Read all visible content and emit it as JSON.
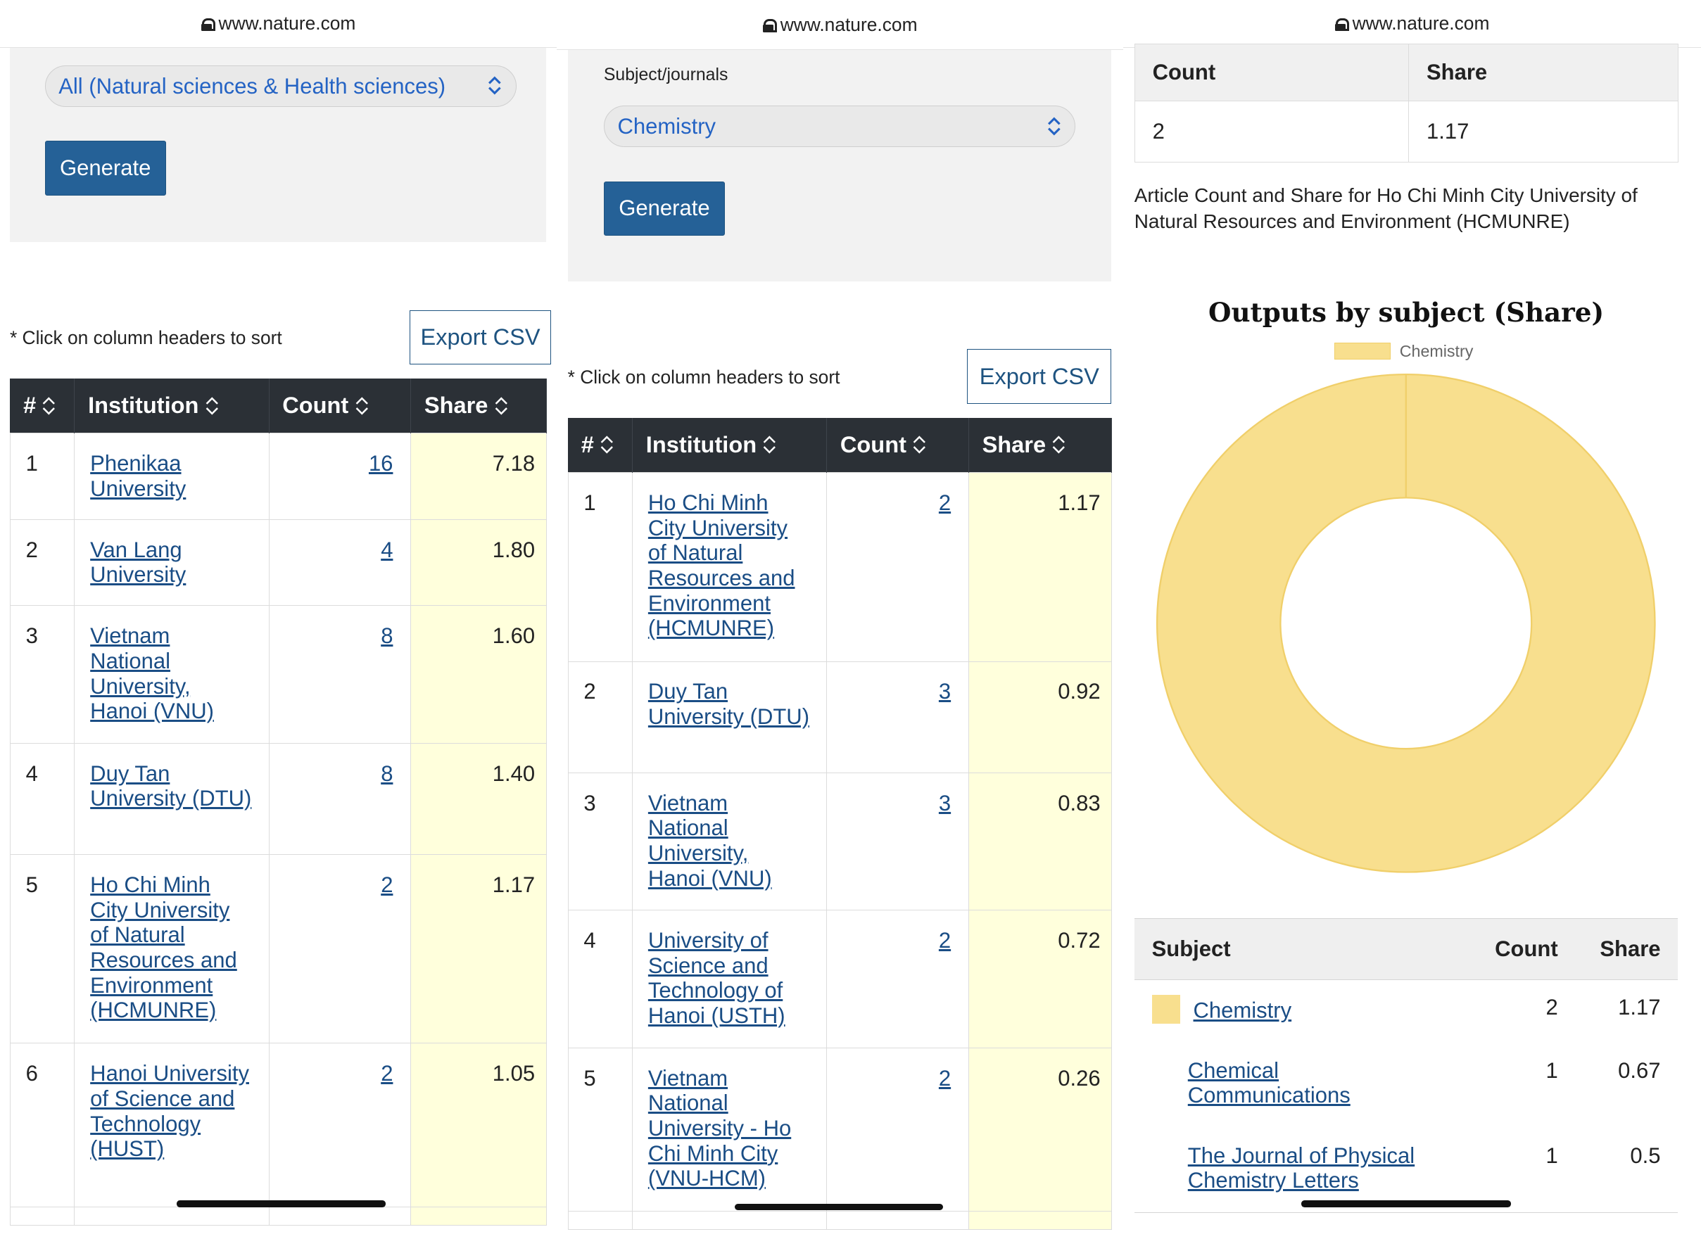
{
  "url": "www.nature.com",
  "panel1": {
    "select_value": "All (Natural sciences & Health sciences)",
    "generate_label": "Generate",
    "hint": "* Click on column headers to sort",
    "export_label": "Export CSV",
    "headers": {
      "rank": "#",
      "institution": "Institution",
      "count": "Count",
      "share": "Share"
    },
    "rows": [
      {
        "rank": "1",
        "name": "Phenikaa University",
        "count": "16",
        "share": "7.18"
      },
      {
        "rank": "2",
        "name": "Van Lang University",
        "count": "4",
        "share": "1.80"
      },
      {
        "rank": "3",
        "name": "Vietnam National University, Hanoi (VNU)",
        "count": "8",
        "share": "1.60"
      },
      {
        "rank": "4",
        "name": "Duy Tan University (DTU)",
        "count": "8",
        "share": "1.40"
      },
      {
        "rank": "5",
        "name": "Ho Chi Minh City University of Natural Resources and Environment (HCMUNRE)",
        "count": "2",
        "share": "1.17"
      },
      {
        "rank": "6",
        "name": "Hanoi University of Science and Technology (HUST)",
        "count": "2",
        "share": "1.05"
      }
    ]
  },
  "panel2": {
    "field_label": "Subject/journals",
    "select_value": "Chemistry",
    "generate_label": "Generate",
    "hint": "* Click on column headers to sort",
    "export_label": "Export CSV",
    "headers": {
      "rank": "#",
      "institution": "Institution",
      "count": "Count",
      "share": "Share"
    },
    "rows": [
      {
        "rank": "1",
        "name": "Ho Chi Minh City University of Natural Resources and Environment (HCMUNRE)",
        "count": "2",
        "share": "1.17"
      },
      {
        "rank": "2",
        "name": "Duy Tan University (DTU)",
        "count": "3",
        "share": "0.92"
      },
      {
        "rank": "3",
        "name": "Vietnam National University, Hanoi (VNU)",
        "count": "3",
        "share": "0.83"
      },
      {
        "rank": "4",
        "name": "University of Science and Technology of Hanoi (USTH)",
        "count": "2",
        "share": "0.72"
      },
      {
        "rank": "5",
        "name": "Vietnam National University - Ho Chi Minh City (VNU-HCM)",
        "count": "2",
        "share": "0.26"
      }
    ]
  },
  "panel3": {
    "summary_headers": {
      "count": "Count",
      "share": "Share"
    },
    "summary_values": {
      "count": "2",
      "share": "1.17"
    },
    "caption": "Article Count and Share for Ho Chi Minh City University of Natural Resources and Environment (HCMUNRE)",
    "subject_headers": {
      "subject": "Subject",
      "count": "Count",
      "share": "Share"
    },
    "subjects": [
      {
        "name": "Chemistry",
        "count": "2",
        "share": "1.17"
      },
      {
        "name": "Chemical Communications",
        "count": "1",
        "share": "0.67"
      },
      {
        "name": "The Journal of Physical Chemistry Letters",
        "count": "1",
        "share": "0.5"
      }
    ]
  },
  "chart_data": {
    "type": "pie",
    "title": "Outputs by subject (Share)",
    "categories": [
      "Chemistry"
    ],
    "values": [
      1.17
    ],
    "donut": true,
    "colors": [
      "#f8df8e"
    ],
    "legend": "top"
  }
}
